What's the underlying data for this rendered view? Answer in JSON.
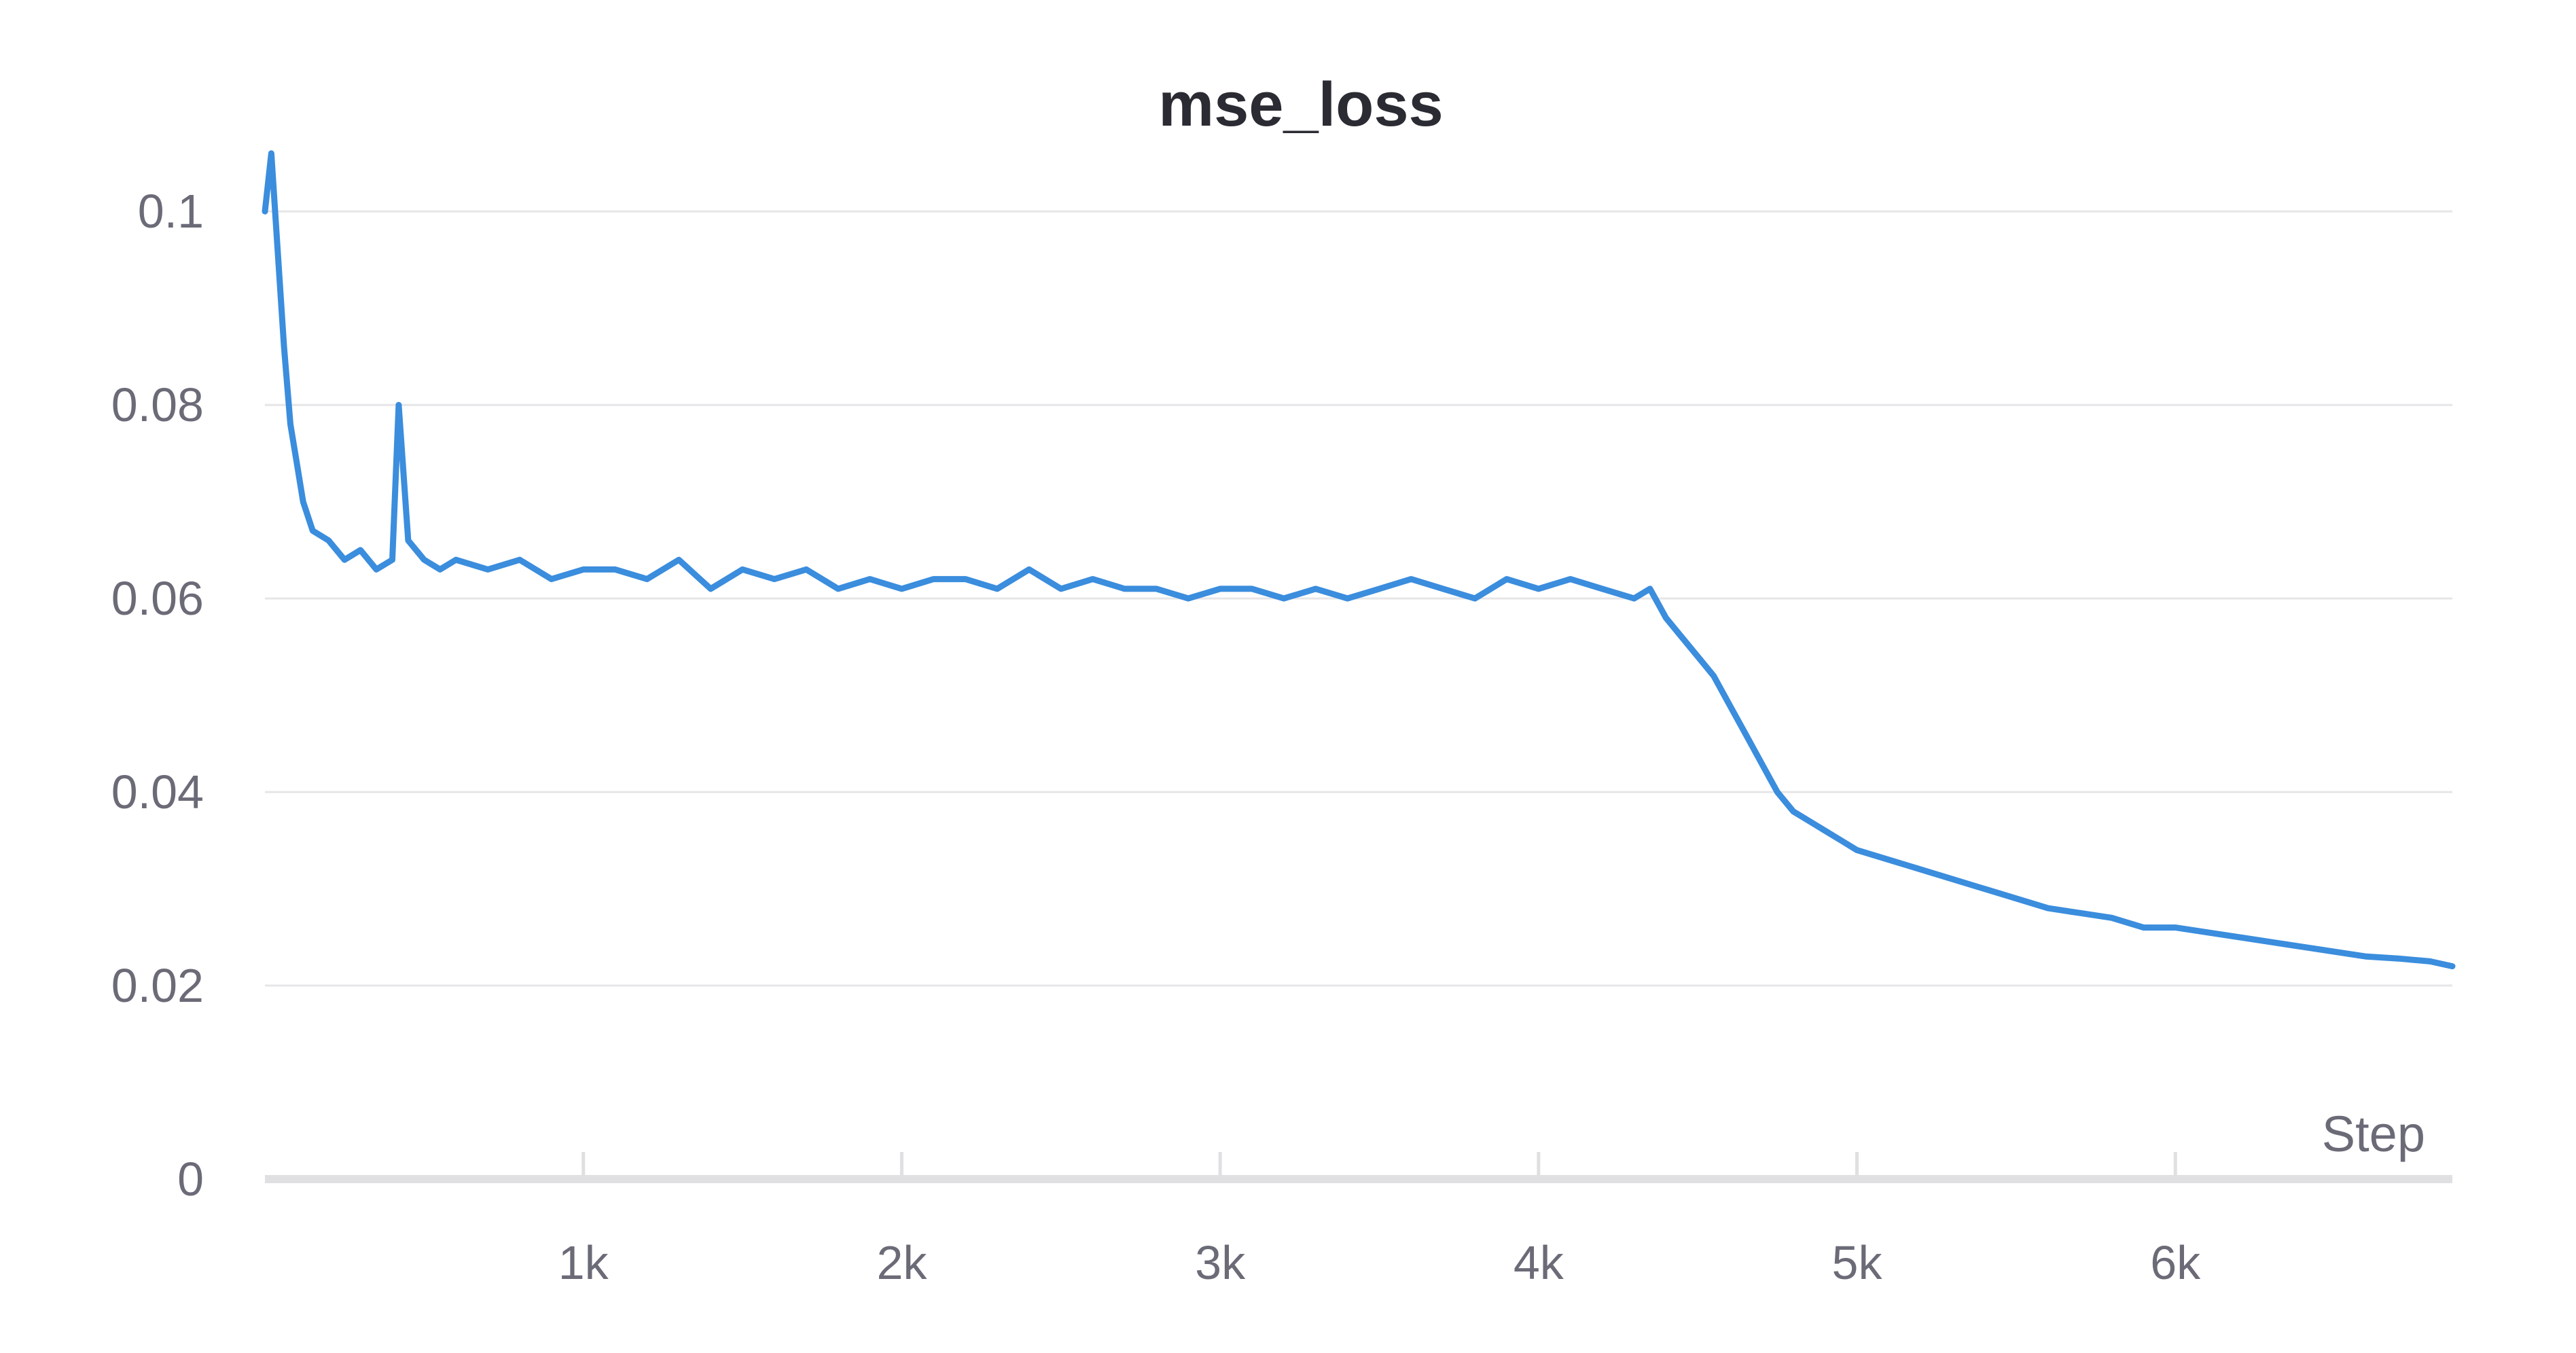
{
  "colors": {
    "line": "#3b8ddd",
    "grid": "#e6e6e8",
    "axis": "#e0e0e2",
    "tick_label": "#6b6b78",
    "title": "#2b2b33"
  },
  "chart_data": {
    "type": "line",
    "title": "mse_loss",
    "xlabel": "Step",
    "ylabel": "",
    "xlim": [
      0,
      6870
    ],
    "ylim": [
      0,
      0.105
    ],
    "grid": true,
    "legend": "none",
    "y_ticks": [
      0,
      0.02,
      0.04,
      0.06,
      0.08,
      0.1
    ],
    "y_tick_labels": [
      "0",
      "0.02",
      "0.04",
      "0.06",
      "0.08",
      "0.1"
    ],
    "x_ticks": [
      1000,
      2000,
      3000,
      4000,
      5000,
      6000
    ],
    "x_tick_labels": [
      "1k",
      "2k",
      "3k",
      "4k",
      "5k",
      "6k"
    ],
    "series": [
      {
        "x": [
          0,
          20,
          40,
          60,
          80,
          100,
          120,
          150,
          200,
          250,
          300,
          350,
          400,
          420,
          450,
          500,
          550,
          600,
          700,
          800,
          900,
          1000,
          1100,
          1200,
          1300,
          1400,
          1500,
          1600,
          1700,
          1800,
          1900,
          2000,
          2100,
          2200,
          2300,
          2400,
          2500,
          2600,
          2700,
          2800,
          2900,
          3000,
          3100,
          3200,
          3300,
          3400,
          3500,
          3600,
          3700,
          3800,
          3900,
          4000,
          4100,
          4200,
          4300,
          4350,
          4400,
          4450,
          4500,
          4550,
          4600,
          4650,
          4700,
          4750,
          4800,
          4850,
          4900,
          4950,
          5000,
          5100,
          5200,
          5300,
          5400,
          5500,
          5600,
          5700,
          5800,
          5900,
          6000,
          6100,
          6200,
          6300,
          6400,
          6500,
          6600,
          6700,
          6800,
          6870
        ],
        "values": [
          0.1,
          0.106,
          0.096,
          0.086,
          0.078,
          0.074,
          0.07,
          0.067,
          0.066,
          0.064,
          0.065,
          0.063,
          0.064,
          0.08,
          0.066,
          0.064,
          0.063,
          0.064,
          0.063,
          0.064,
          0.062,
          0.063,
          0.063,
          0.062,
          0.064,
          0.061,
          0.063,
          0.062,
          0.063,
          0.061,
          0.062,
          0.061,
          0.062,
          0.062,
          0.061,
          0.063,
          0.061,
          0.062,
          0.061,
          0.061,
          0.06,
          0.061,
          0.061,
          0.06,
          0.061,
          0.06,
          0.061,
          0.062,
          0.061,
          0.06,
          0.062,
          0.061,
          0.062,
          0.061,
          0.06,
          0.061,
          0.058,
          0.056,
          0.054,
          0.052,
          0.049,
          0.046,
          0.043,
          0.04,
          0.038,
          0.037,
          0.036,
          0.035,
          0.034,
          0.033,
          0.032,
          0.031,
          0.03,
          0.029,
          0.028,
          0.0275,
          0.027,
          0.026,
          0.026,
          0.0255,
          0.025,
          0.0245,
          0.024,
          0.0235,
          0.023,
          0.0228,
          0.0225,
          0.022
        ]
      }
    ]
  }
}
